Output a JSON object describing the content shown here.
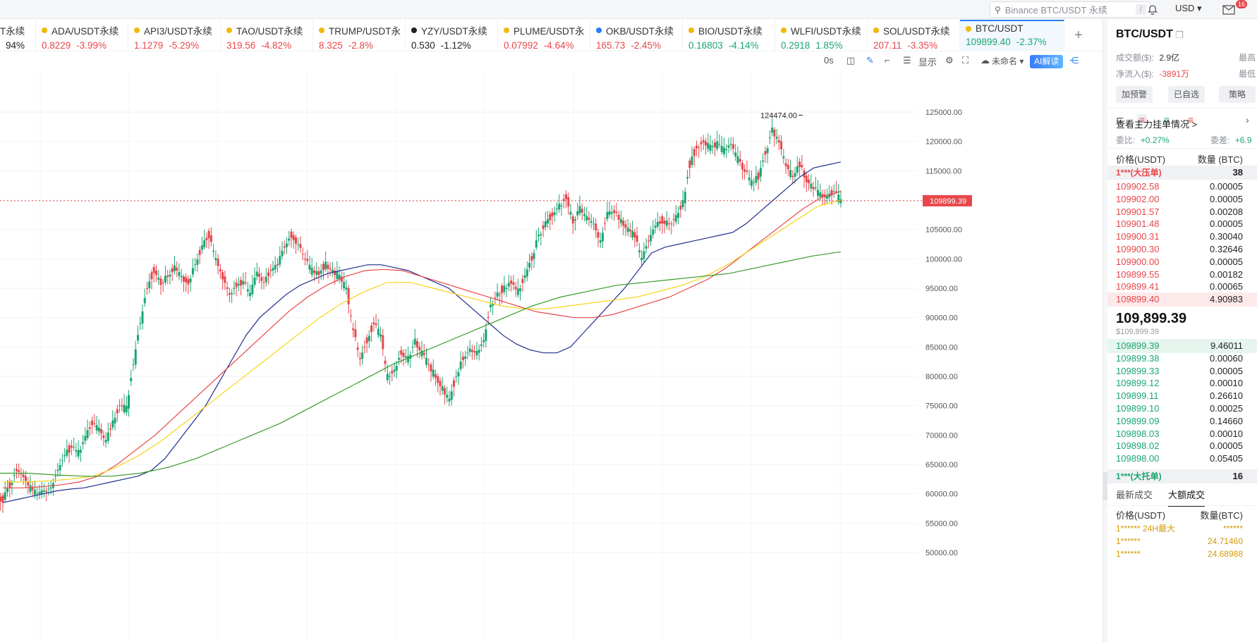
{
  "topbar": {
    "search_placeholder": "Binance BTC/USDT 永续",
    "search_shortcut": "/",
    "currency": "USD ▾",
    "notification_badge": "16"
  },
  "tickers": [
    {
      "name": "T永续",
      "price": "",
      "change": "94%",
      "dir": "neutral",
      "dot": ""
    },
    {
      "name": "ADA/USDT永续",
      "price": "0.8229",
      "change": "-3.99%",
      "dir": "down",
      "dot": "#f0b90b"
    },
    {
      "name": "API3/USDT永续",
      "price": "1.1279",
      "change": "-5.29%",
      "dir": "down",
      "dot": "#f0b90b"
    },
    {
      "name": "TAO/USDT永续",
      "price": "319.56",
      "change": "-4.82%",
      "dir": "down",
      "dot": "#f0b90b"
    },
    {
      "name": "TRUMP/USDT永",
      "price": "8.325",
      "change": "-2.8%",
      "dir": "down",
      "dot": "#f0b90b"
    },
    {
      "name": "YZY/USDT永续",
      "price": "0.530",
      "change": "-1.12%",
      "dir": "neutral",
      "dot": "#222222"
    },
    {
      "name": "PLUME/USDT永",
      "price": "0.07992",
      "change": "-4.64%",
      "dir": "down",
      "dot": "#f0b90b"
    },
    {
      "name": "OKB/USDT永续",
      "price": "165.73",
      "change": "-2.45%",
      "dir": "down",
      "dot": "#2b7cf6"
    },
    {
      "name": "BIO/USDT永续",
      "price": "0.16803",
      "change": "-4.14%",
      "dir": "up",
      "dot": "#f0b90b"
    },
    {
      "name": "WLFI/USDT永续",
      "price": "0.2918",
      "change": "1.85%",
      "dir": "up",
      "dot": "#f0b90b"
    },
    {
      "name": "SOL/USDT永续",
      "price": "207.11",
      "change": "-3.35%",
      "dir": "down",
      "dot": "#f0b90b"
    },
    {
      "name": "BTC/USDT",
      "price": "109899.40",
      "change": "-2.37%",
      "dir": "up",
      "dot": "#f0b90b"
    }
  ],
  "toolbar": {
    "timer": "0s",
    "display_label": "显示",
    "layout_name": "未命名 ▾",
    "ai_label": "AI解读"
  },
  "chart": {
    "high_label": "124474.00",
    "last_price_label": "109899.39",
    "y_ticks": [
      "125000.00",
      "120000.00",
      "115000.00",
      "110000.00",
      "105000.00",
      "100000.00",
      "95000.00",
      "90000.00",
      "85000.00",
      "80000.00",
      "75000.00",
      "70000.00",
      "65000.00",
      "60000.00",
      "55000.00",
      "50000.00"
    ]
  },
  "chart_data": {
    "type": "line",
    "title": "",
    "ylim": [
      49000,
      129000
    ],
    "y_ticks": [
      125000,
      120000,
      115000,
      110000,
      105000,
      100000,
      95000,
      90000,
      85000,
      80000,
      75000,
      70000,
      65000,
      60000,
      55000,
      50000
    ],
    "high": 124474,
    "last": 109899.39,
    "series": [
      {
        "color": "#19a672",
        "values": [
          59000,
          61500,
          64000,
          63000,
          61000,
          60000,
          60500,
          61000,
          64000,
          66500,
          68000,
          67000,
          69500,
          72000,
          71000,
          69000,
          72000,
          75000,
          74500,
          82000,
          89000,
          95000,
          98000,
          96000,
          97000,
          98500,
          97000,
          96000,
          99000,
          102000,
          104000,
          100000,
          97000,
          94000,
          95500,
          96000,
          94000,
          97500,
          96000,
          98000,
          99000,
          102000,
          104000,
          102500,
          100000,
          98000,
          97500,
          99000,
          98000,
          97000,
          95000,
          88000,
          83000,
          86000,
          89000,
          87000,
          80000,
          81000,
          84000,
          83000,
          86000,
          84000,
          82000,
          80000,
          78000,
          76000,
          80000,
          83000,
          84500,
          84000,
          86000,
          92000,
          94000,
          95000,
          96000,
          94500,
          97000,
          100000,
          104000,
          106000,
          107500,
          109000,
          110500,
          106500,
          108500,
          107000,
          106000,
          103000,
          107500,
          108000,
          106500,
          105000,
          104000,
          100000,
          103000,
          105500,
          106500,
          106000,
          107000,
          109500,
          116000,
          119000,
          120000,
          119000,
          119500,
          118500,
          119500,
          117000,
          115000,
          113000,
          114000,
          118000,
          122000,
          120000,
          116000,
          114000,
          116000,
          113500,
          112000,
          111000,
          110500,
          111500,
          109900
        ]
      },
      {
        "color": "#1f2f8f",
        "values": [
          58500,
          59000,
          59500,
          60000,
          60500,
          60800,
          61000,
          61500,
          62000,
          62500,
          63000,
          64000,
          66000,
          69000,
          72000,
          75000,
          79000,
          83000,
          87000,
          90000,
          92000,
          94000,
          95500,
          96500,
          97500,
          98000,
          98500,
          99000,
          99000,
          98500,
          98000,
          97000,
          96000,
          95000,
          93000,
          91000,
          89000,
          87000,
          85500,
          84500,
          84000,
          84000,
          85000,
          87500,
          90000,
          92500,
          95000,
          98000,
          101000,
          102000,
          102500,
          103000,
          103500,
          104000,
          104500,
          106000,
          108000,
          110000,
          112000,
          114000,
          115500,
          116000,
          116500
        ]
      },
      {
        "color": "#e8464a",
        "values": [
          61000,
          61000,
          61200,
          61500,
          62000,
          63000,
          65000,
          67500,
          70000,
          73000,
          76000,
          79000,
          82000,
          85000,
          88000,
          91000,
          93500,
          95500,
          97000,
          98000,
          98200,
          98000,
          97000,
          96000,
          95000,
          94000,
          93000,
          92000,
          91000,
          90500,
          90000,
          90000,
          90500,
          91500,
          92500,
          93500,
          95000,
          96500,
          98500,
          101000,
          103500,
          106000,
          108500,
          110500,
          111500
        ]
      },
      {
        "color": "#f5d416",
        "values": [
          62000,
          62000,
          62200,
          62500,
          63000,
          64500,
          66500,
          69000,
          72000,
          75000,
          78000,
          81000,
          84000,
          87000,
          90000,
          92500,
          94500,
          96000,
          96000,
          95000,
          94000,
          93000,
          92000,
          91500,
          91500,
          92000,
          92500,
          93000,
          93500,
          94500,
          95500,
          97000,
          99000,
          101500,
          104000,
          106500,
          109000,
          110000
        ]
      },
      {
        "color": "#3a9a2a",
        "values": [
          63500,
          63500,
          63200,
          63000,
          63000,
          63500,
          64500,
          66000,
          68000,
          70000,
          72000,
          74500,
          77000,
          79500,
          82000,
          84000,
          86000,
          88000,
          90000,
          92000,
          93500,
          94500,
          95500,
          96000,
          96500,
          97000,
          97500,
          98500,
          99500,
          100500,
          101200
        ]
      }
    ]
  },
  "sidebar": {
    "pair": "BTC/USDT",
    "vol_label": "成交额($):",
    "vol_value": "2.9亿",
    "high_label": "最高",
    "inflow_label": "净流入($):",
    "inflow_value": "-3891万",
    "low_label": "最低",
    "btn_alert": "加预警",
    "btn_fav": "已自选",
    "btn_strategy": "策略",
    "depth_link": "查看主力挂单情况 >",
    "weibi_label": "委比:",
    "weibi_value": "+0.27%",
    "weicha_label": "委差:",
    "weicha_value": "+6.9",
    "col_price": "价格(USDT)",
    "col_qty": "数量 (BTC)",
    "big_ask_label": "1***(大压单)",
    "big_ask_qty": "38",
    "asks": [
      {
        "p": "109902.58",
        "q": "0.00005"
      },
      {
        "p": "109902.00",
        "q": "0.00005"
      },
      {
        "p": "109901.57",
        "q": "0.00208"
      },
      {
        "p": "109901.48",
        "q": "0.00005"
      },
      {
        "p": "109900.31",
        "q": "0.30040"
      },
      {
        "p": "109900.30",
        "q": "0.32646"
      },
      {
        "p": "109900.00",
        "q": "0.00005"
      },
      {
        "p": "109899.55",
        "q": "0.00182"
      },
      {
        "p": "109899.41",
        "q": "0.00065"
      },
      {
        "p": "109899.40",
        "q": "4.90983"
      }
    ],
    "last_price": "109,899.39",
    "last_price_usd": "$109,899.39",
    "bids": [
      {
        "p": "109899.39",
        "q": "9.46011"
      },
      {
        "p": "109899.38",
        "q": "0.00060"
      },
      {
        "p": "109899.33",
        "q": "0.00005"
      },
      {
        "p": "109899.12",
        "q": "0.00010"
      },
      {
        "p": "109899.11",
        "q": "0.26610"
      },
      {
        "p": "109899.10",
        "q": "0.00025"
      },
      {
        "p": "109899.09",
        "q": "0.14660"
      },
      {
        "p": "109898.03",
        "q": "0.00010"
      },
      {
        "p": "109898.02",
        "q": "0.00005"
      },
      {
        "p": "109898.00",
        "q": "0.05405"
      }
    ],
    "big_bid_label": "1***(大托单)",
    "big_bid_qty": "16",
    "tab_latest": "最新成交",
    "tab_large": "大额成交",
    "trades_col_price": "价格(USDT)",
    "trades_col_qty": "数量(BTC)",
    "trades": [
      {
        "p": "1****** 24H最大",
        "q": "******"
      },
      {
        "p": "1******",
        "q": "24.71460"
      },
      {
        "p": "1******",
        "q": "24.68988"
      }
    ]
  }
}
